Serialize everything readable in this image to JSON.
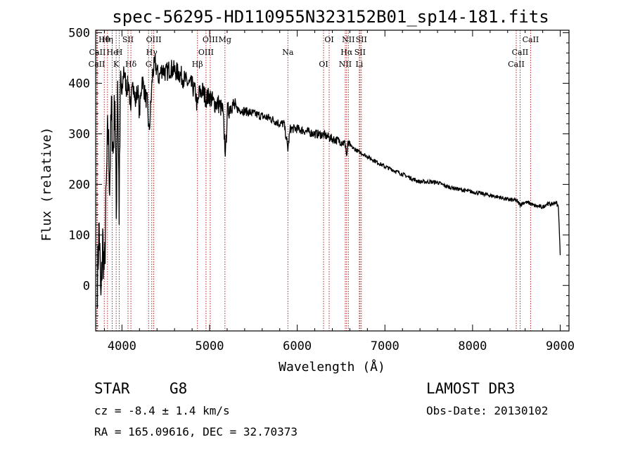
{
  "chart_data": {
    "type": "line",
    "title": "spec-56295-HD110955N323152B01_sp14-181.fits",
    "xlabel": "Wavelength (Å)",
    "ylabel": "Flux (relative)",
    "xlim": [
      3700,
      9100
    ],
    "ylim": [
      -90,
      505
    ],
    "x_ticks": [
      4000,
      5000,
      6000,
      7000,
      8000,
      9000
    ],
    "y_ticks": [
      0,
      100,
      200,
      300,
      400,
      500
    ],
    "grid": false,
    "series": [
      {
        "name": "flux",
        "x": [
          3720,
          3740,
          3760,
          3780,
          3800,
          3820,
          3840,
          3860,
          3880,
          3900,
          3920,
          3935,
          3950,
          3968,
          3985,
          4000,
          4020,
          4050,
          4080,
          4101,
          4120,
          4150,
          4180,
          4200,
          4230,
          4260,
          4290,
          4310,
          4330,
          4350,
          4380,
          4420,
          4460,
          4500,
          4550,
          4600,
          4650,
          4700,
          4750,
          4800,
          4840,
          4861,
          4880,
          4920,
          4960,
          5000,
          5050,
          5100,
          5150,
          5170,
          5183,
          5200,
          5250,
          5300,
          5400,
          5500,
          5600,
          5700,
          5800,
          5850,
          5893,
          5920,
          6000,
          6100,
          6200,
          6300,
          6400,
          6500,
          6550,
          6563,
          6580,
          6650,
          6700,
          6800,
          6900,
          7000,
          7100,
          7200,
          7300,
          7400,
          7500,
          7600,
          7700,
          7800,
          7900,
          8000,
          8100,
          8200,
          8300,
          8400,
          8500,
          8542,
          8600,
          8662,
          8700,
          8800,
          8850,
          8900,
          8950,
          8980,
          9000
        ],
        "values": [
          10,
          120,
          -40,
          90,
          20,
          180,
          320,
          200,
          350,
          260,
          380,
          130,
          420,
          150,
          410,
          370,
          430,
          390,
          400,
          330,
          420,
          360,
          390,
          340,
          410,
          380,
          360,
          300,
          360,
          420,
          440,
          410,
          430,
          420,
          430,
          425,
          420,
          410,
          400,
          395,
          380,
          350,
          380,
          385,
          370,
          375,
          360,
          360,
          345,
          290,
          260,
          340,
          360,
          350,
          345,
          340,
          335,
          330,
          320,
          320,
          270,
          310,
          310,
          305,
          300,
          298,
          290,
          285,
          280,
          255,
          280,
          270,
          265,
          255,
          245,
          235,
          228,
          220,
          212,
          205,
          205,
          204,
          196,
          192,
          188,
          185,
          182,
          178,
          175,
          170,
          168,
          160,
          165,
          162,
          158,
          155,
          162,
          160,
          165,
          155,
          60
        ]
      }
    ],
    "line_markers": [
      {
        "label": "Hθ",
        "x": 3798
      },
      {
        "label": "CaII",
        "x": 3720
      },
      {
        "label": "CaII",
        "x": 3712
      },
      {
        "label": "Hη",
        "x": 3835
      },
      {
        "label": "He",
        "x": 3889
      },
      {
        "label": "K",
        "x": 3934
      },
      {
        "label": "SII",
        "x": 4069
      },
      {
        "label": "H",
        "x": 3969
      },
      {
        "label": "Hδ",
        "x": 4102
      },
      {
        "label": "OIII",
        "x": 4363
      },
      {
        "label": "Hγ",
        "x": 4340
      },
      {
        "label": "G",
        "x": 4304
      },
      {
        "label": "OIII",
        "x": 5007
      },
      {
        "label": "OIII",
        "x": 4959
      },
      {
        "label": "Hβ",
        "x": 4861
      },
      {
        "label": "Mg",
        "x": 5175
      },
      {
        "label": "Na",
        "x": 5893
      },
      {
        "label": "OI",
        "x": 6300
      },
      {
        "label": "OI",
        "x": 6364
      },
      {
        "label": "Hα",
        "x": 6563
      },
      {
        "label": "NII",
        "x": 6548
      },
      {
        "label": "NII",
        "x": 6583
      },
      {
        "label": "SII",
        "x": 6716
      },
      {
        "label": "Li",
        "x": 6708
      },
      {
        "label": "SII",
        "x": 6731
      },
      {
        "label": "CaII",
        "x": 8542
      },
      {
        "label": "CaII",
        "x": 8498
      },
      {
        "label": "CaII",
        "x": 8662
      }
    ]
  },
  "info": {
    "object_class": "STAR",
    "subclass": "G8",
    "survey": "LAMOST DR3",
    "cz": "cz = -8.4 ± 1.4 km/s",
    "obs_date": "Obs-Date: 20130102",
    "radec": "RA = 165.09616, DEC =  32.70373"
  }
}
